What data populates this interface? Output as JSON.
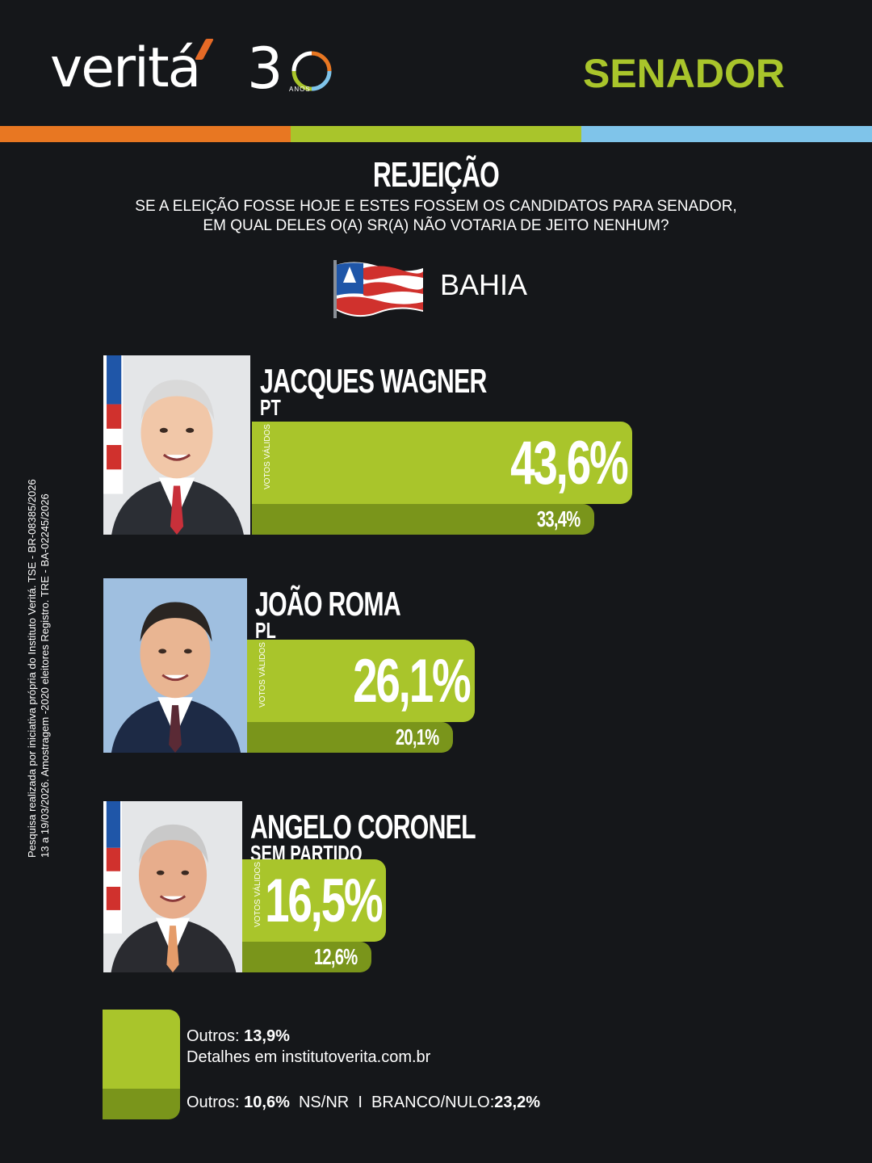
{
  "brand": {
    "logo_text": "ver",
    "logo_text2": "it",
    "logo_text3": "á",
    "logo_number": "3",
    "logo_anos": "ANOS"
  },
  "header": {
    "title": "SENADOR"
  },
  "section": {
    "title": "REJEIÇÃO",
    "question_line1": "SE A ELEIÇÃO FOSSE HOJE E ESTES FOSSEM OS CANDIDATOS PARA SENADOR,",
    "question_line2": "EM QUAL DELES O(A) SR(A) NÃO VOTARIA DE JEITO NENHUM?"
  },
  "state": {
    "name": "BAHIA"
  },
  "colors": {
    "accent_green": "#a9c52b",
    "dark_green": "#7a951b",
    "orange": "#e87722",
    "blue": "#7fc4ea",
    "background": "#15171a"
  },
  "chart_data": {
    "type": "bar",
    "title": "REJEIÇÃO",
    "bar_label": "VOTOS VÁLIDOS",
    "categories": [
      "JACQUES WAGNER",
      "JOÃO ROMA",
      "ANGELO CORONEL"
    ],
    "parties": [
      "PT",
      "PL",
      "SEM PARTIDO"
    ],
    "series": [
      {
        "name": "VOTOS VÁLIDOS",
        "values": [
          43.6,
          26.1,
          16.5
        ],
        "labels": [
          "43,6%",
          "26,1%",
          "16,5%"
        ]
      },
      {
        "values": [
          33.4,
          20.1,
          12.6
        ],
        "labels": [
          "33,4%",
          "20,1%",
          "12,6%"
        ]
      }
    ]
  },
  "legend": {
    "line1_prefix": "Outros:",
    "line1_value": "13,9%",
    "line2": "Detalhes em institutoverita.com.br",
    "line3_prefix": "Outros:",
    "line3_value": "10,6%",
    "line3_ns": "NS/NR",
    "line3_sep": "I",
    "line3_branco_label": "BRANCO/NULO:",
    "line3_branco_value": "23,2%"
  },
  "side_note": {
    "line1": "Pesquisa realizada por iniciativa própria do Instituto Veritá. TSE - BR-08385/2026",
    "line2": "13 a 19/03/2026. Amostragem -2020 eleitores Registro. TRE - BA-02245/2026"
  }
}
